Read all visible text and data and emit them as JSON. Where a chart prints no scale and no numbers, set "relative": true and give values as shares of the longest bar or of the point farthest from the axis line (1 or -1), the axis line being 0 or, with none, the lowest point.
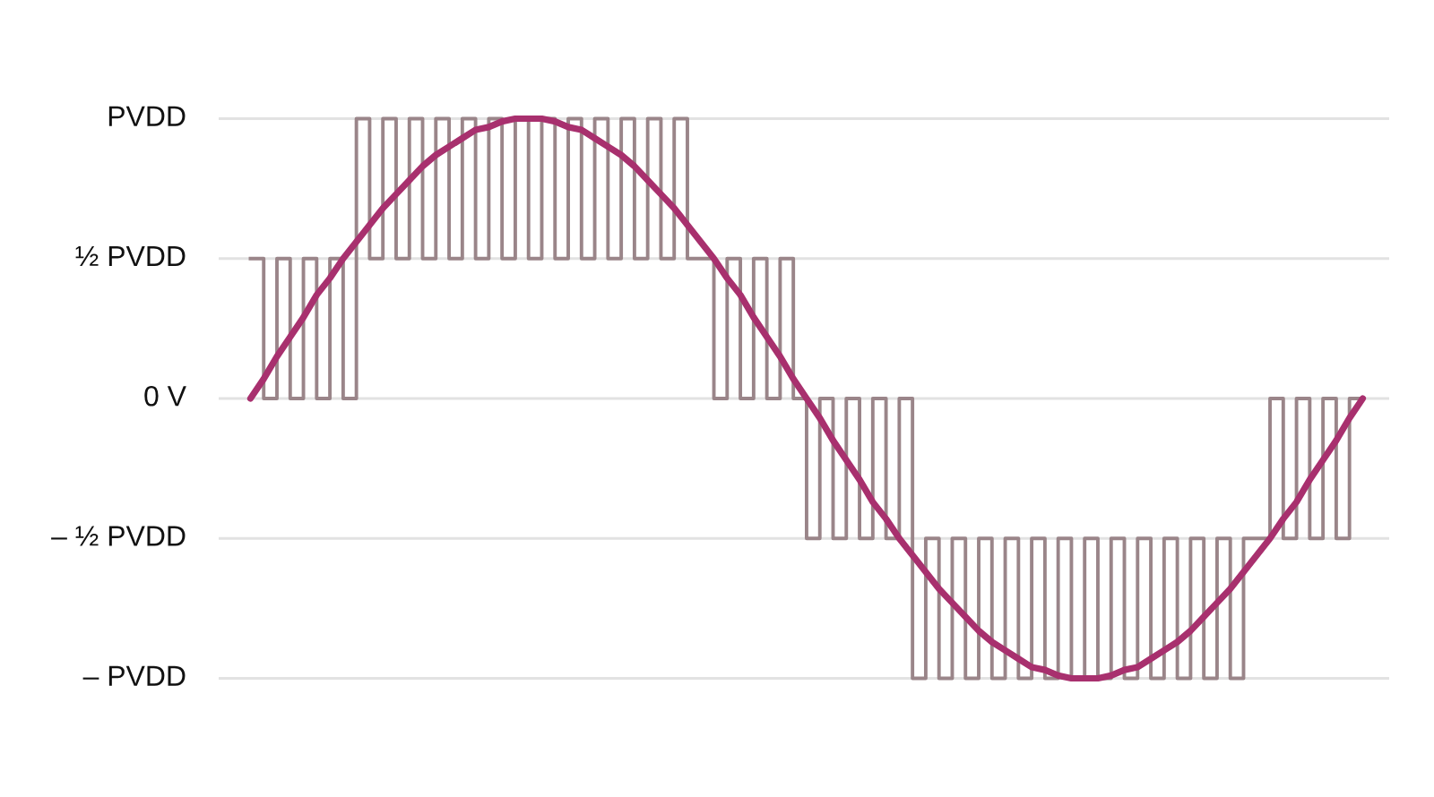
{
  "chart_data": {
    "type": "line",
    "categories": [
      null,
      null,
      null,
      null,
      null,
      null,
      null,
      null,
      null,
      null,
      null,
      null,
      null,
      null,
      null,
      null,
      null,
      null,
      null,
      null,
      null,
      null,
      null,
      null,
      null,
      null,
      null,
      null,
      null,
      null,
      null,
      null,
      null,
      null,
      null,
      null,
      null,
      null,
      null,
      null,
      null,
      null,
      null,
      null,
      null,
      null,
      null,
      null,
      null,
      null,
      null,
      null,
      null,
      null,
      null,
      null,
      null,
      null,
      null,
      null,
      null,
      null,
      null,
      null,
      null,
      null,
      null,
      null,
      null,
      null,
      null,
      null,
      null,
      null,
      null,
      null,
      null,
      null,
      null,
      null,
      null,
      null,
      null,
      null,
      null
    ],
    "series": [
      {
        "type": "step",
        "color": "#9a8589",
        "values": [
          0.5,
          0,
          0.5,
          0,
          0.5,
          0,
          0.5,
          0,
          1,
          0.5,
          1,
          0.5,
          1,
          0.5,
          1,
          0.5,
          1,
          0.5,
          1,
          0.5,
          1,
          0.5,
          1,
          0.5,
          1,
          0.5,
          1,
          0.5,
          1,
          0.5,
          1,
          0.5,
          1,
          0.5,
          0.5,
          0,
          0.5,
          0,
          0.5,
          0,
          0.5,
          0,
          -0.5,
          0,
          -0.5,
          0,
          -0.5,
          0,
          -0.5,
          0,
          -1,
          -0.5,
          -1,
          -0.5,
          -1,
          -0.5,
          -1,
          -0.5,
          -1,
          -0.5,
          -1,
          -0.5,
          -1,
          -0.5,
          -1,
          -0.5,
          -1,
          -0.5,
          -1,
          -0.5,
          -1,
          -0.5,
          -1,
          -0.5,
          -1,
          -0.5,
          -0.5,
          0,
          -0.5,
          0,
          -0.5,
          0,
          -0.5,
          0,
          0
        ]
      },
      {
        "color": "#a8306e",
        "values": [
          0,
          0.07,
          0.15,
          0.22,
          0.29,
          0.37,
          0.43,
          0.5,
          0.56,
          0.62,
          0.68,
          0.73,
          0.78,
          0.83,
          0.87,
          0.9,
          0.93,
          0.96,
          0.97,
          0.99,
          1,
          1,
          1,
          0.99,
          0.97,
          0.96,
          0.93,
          0.9,
          0.87,
          0.83,
          0.78,
          0.73,
          0.68,
          0.62,
          0.56,
          0.5,
          0.43,
          0.37,
          0.29,
          0.22,
          0.15,
          0.07,
          0,
          -0.07,
          -0.15,
          -0.22,
          -0.29,
          -0.37,
          -0.43,
          -0.5,
          -0.56,
          -0.62,
          -0.68,
          -0.73,
          -0.78,
          -0.83,
          -0.87,
          -0.9,
          -0.93,
          -0.96,
          -0.97,
          -0.99,
          -1,
          -1,
          -1,
          -0.99,
          -0.97,
          -0.96,
          -0.93,
          -0.9,
          -0.87,
          -0.83,
          -0.78,
          -0.73,
          -0.68,
          -0.62,
          -0.56,
          -0.5,
          -0.43,
          -0.37,
          -0.29,
          -0.22,
          -0.15,
          -0.07,
          0
        ]
      }
    ],
    "relative": true,
    "ref_lines": [
      {
        "axis": "y",
        "value": 1,
        "label": "PVDD",
        "color": "#e2e2e2"
      },
      {
        "axis": "y",
        "value": 0.5,
        "label": "½ PVDD",
        "color": "#e2e2e2"
      },
      {
        "axis": "y",
        "value": 0,
        "label": "0 V",
        "color": "#e2e2e2"
      },
      {
        "axis": "y",
        "value": -0.5,
        "label": "– ½ PVDD",
        "color": "#e2e2e2"
      },
      {
        "axis": "y",
        "value": -1,
        "label": "– PVDD",
        "color": "#e2e2e2"
      }
    ],
    "legend": false
  }
}
